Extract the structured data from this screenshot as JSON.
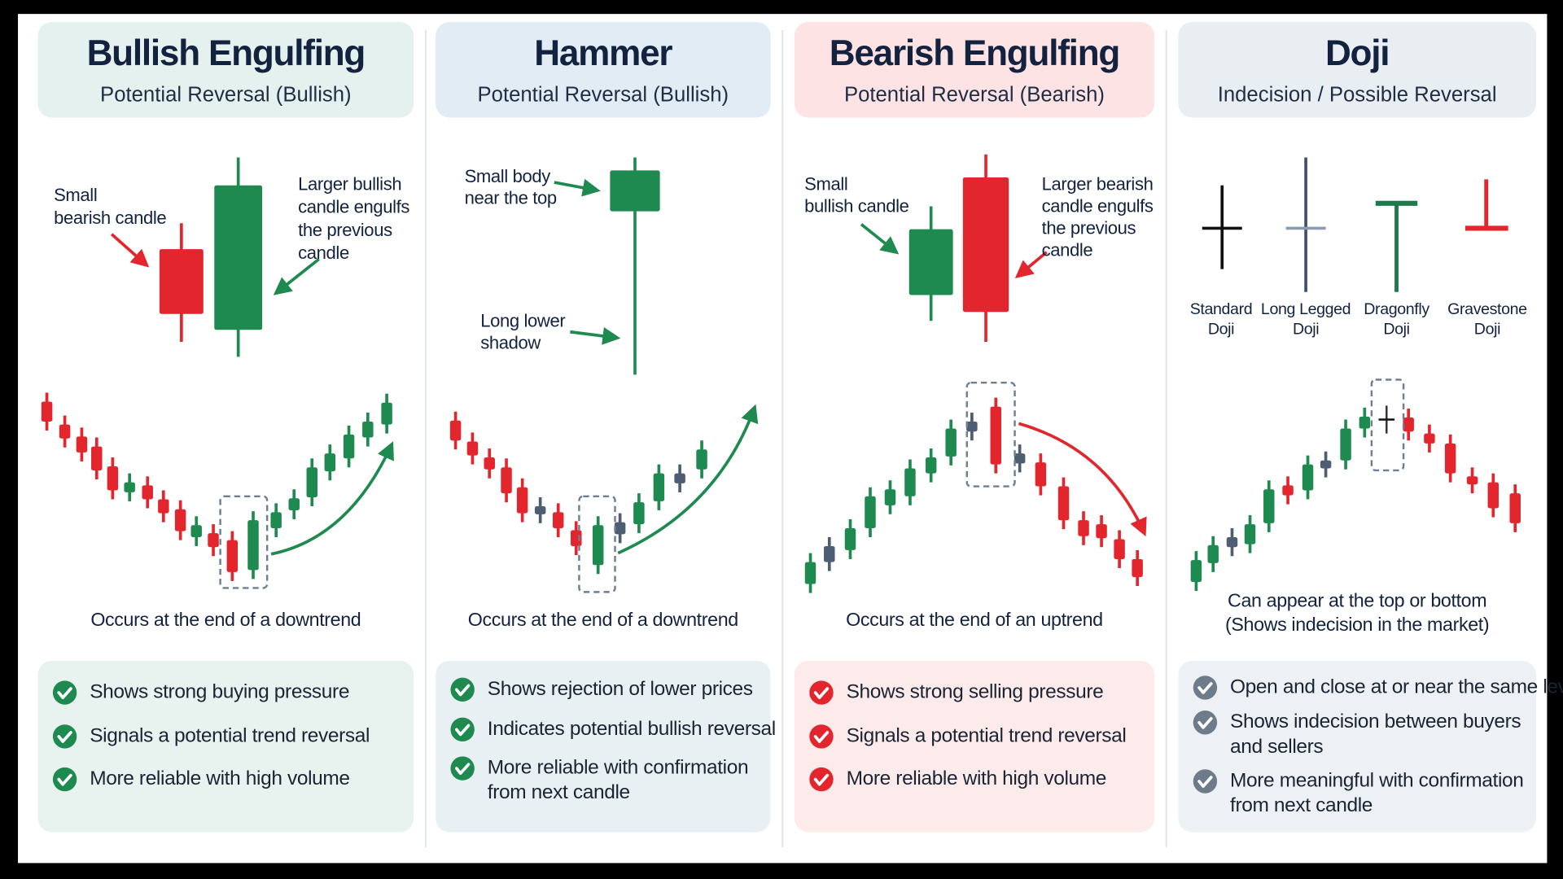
{
  "panels": [
    {
      "title": "Bullish Engulfing",
      "subtitle": "Potential Reversal (Bullish)",
      "notes": [
        [
          "Small",
          "bearish candle"
        ],
        [
          "Larger bullish",
          "candle engulfs",
          "the previous",
          "candle"
        ]
      ],
      "caption": [
        "Occurs at the end of a downtrend"
      ],
      "bullets": [
        [
          "Shows strong buying pressure"
        ],
        [
          "Signals a potential trend reversal"
        ],
        [
          "More reliable with high volume"
        ]
      ]
    },
    {
      "title": "Hammer",
      "subtitle": "Potential Reversal (Bullish)",
      "notes": [
        [
          "Small body",
          "near the top"
        ],
        [
          "Long lower",
          "shadow"
        ]
      ],
      "caption": [
        "Occurs at the end of a downtrend"
      ],
      "bullets": [
        [
          "Shows rejection of lower prices"
        ],
        [
          "Indicates potential bullish reversal"
        ],
        [
          "More reliable with confirmation",
          "from next candle"
        ]
      ]
    },
    {
      "title": "Bearish Engulfing",
      "subtitle": "Potential Reversal (Bearish)",
      "notes": [
        [
          "Small",
          "bullish candle"
        ],
        [
          "Larger bearish",
          "candle engulfs",
          "the previous",
          "candle"
        ]
      ],
      "caption": [
        "Occurs at the end of an uptrend"
      ],
      "bullets": [
        [
          "Shows strong selling pressure"
        ],
        [
          "Signals a potential trend reversal"
        ],
        [
          "More reliable with high volume"
        ]
      ]
    },
    {
      "title": "Doji",
      "subtitle": "Indecision / Possible Reversal",
      "notes": [
        [
          "Standard",
          "Doji"
        ],
        [
          "Long Legged",
          "Doji"
        ],
        [
          "Dragonfly",
          "Doji"
        ],
        [
          "Gravestone",
          "Doji"
        ]
      ],
      "caption": [
        "Can appear at the top or bottom",
        "(Shows indecision in the market)"
      ],
      "bullets": [
        [
          "Open and close at or near the same level"
        ],
        [
          "Shows indecision between buyers",
          "and sellers"
        ],
        [
          "More meaningful with confirmation",
          "from next candle"
        ]
      ]
    }
  ]
}
